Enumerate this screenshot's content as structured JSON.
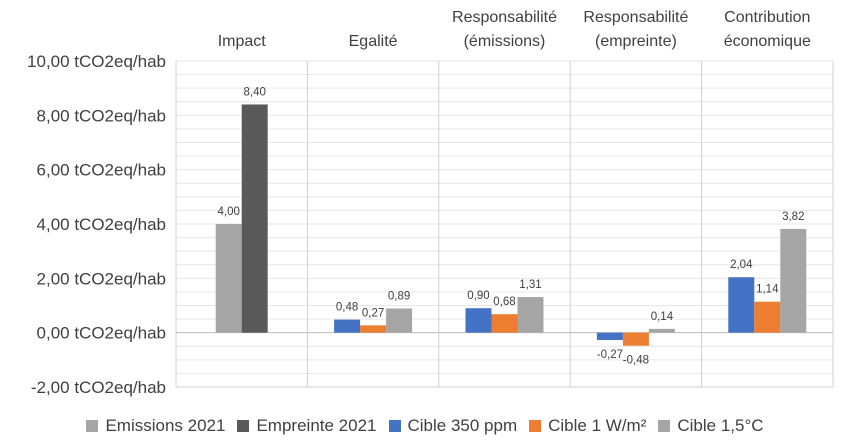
{
  "chart_data": {
    "type": "bar",
    "categories": [
      [
        "Impact"
      ],
      [
        "Egalité"
      ],
      [
        "Responsabilité",
        "(émissions)"
      ],
      [
        "Responsabilité",
        "(empreinte)"
      ],
      [
        "Contribution",
        "économique"
      ]
    ],
    "ylim": [
      -2,
      10
    ],
    "y_ticks": [
      {
        "value": 10,
        "label": "10,00 tCO2eq/hab"
      },
      {
        "value": 8,
        "label": "8,00 tCO2eq/hab"
      },
      {
        "value": 6,
        "label": "6,00 tCO2eq/hab"
      },
      {
        "value": 4,
        "label": "4,00 tCO2eq/hab"
      },
      {
        "value": 2,
        "label": "2,00 tCO2eq/hab"
      },
      {
        "value": 0,
        "label": "0,00 tCO2eq/hab"
      },
      {
        "value": -2,
        "label": "-2,00 tCO2eq/hab"
      }
    ],
    "grid": true,
    "legend_position": "bottom",
    "groups": [
      {
        "bars": [
          {
            "series": 0,
            "value": 4.0,
            "label": "4,00"
          },
          {
            "series": 1,
            "value": 8.4,
            "label": "8,40"
          }
        ]
      },
      {
        "bars": [
          {
            "series": 2,
            "value": 0.48,
            "label": "0,48"
          },
          {
            "series": 3,
            "value": 0.27,
            "label": "0,27"
          },
          {
            "series": 4,
            "value": 0.89,
            "label": "0,89"
          }
        ]
      },
      {
        "bars": [
          {
            "series": 2,
            "value": 0.9,
            "label": "0,90"
          },
          {
            "series": 3,
            "value": 0.68,
            "label": "0,68"
          },
          {
            "series": 4,
            "value": 1.31,
            "label": "1,31"
          }
        ]
      },
      {
        "bars": [
          {
            "series": 2,
            "value": -0.27,
            "label": "-0,27"
          },
          {
            "series": 3,
            "value": -0.48,
            "label": "-0,48"
          },
          {
            "series": 4,
            "value": 0.14,
            "label": "0,14"
          }
        ]
      },
      {
        "bars": [
          {
            "series": 2,
            "value": 2.04,
            "label": "2,04"
          },
          {
            "series": 3,
            "value": 1.14,
            "label": "1,14"
          },
          {
            "series": 4,
            "value": 3.82,
            "label": "3,82"
          }
        ]
      }
    ],
    "series": [
      {
        "name": "Emissions 2021",
        "color": "#A5A5A5"
      },
      {
        "name": "Empreinte 2021",
        "color": "#595959"
      },
      {
        "name": "Cible 350 ppm",
        "color": "#4472C4"
      },
      {
        "name": "Cible 1 W/m²",
        "color": "#ED7D31"
      },
      {
        "name": "Cible 1,5°C",
        "color": "#A5A5A5"
      }
    ]
  }
}
